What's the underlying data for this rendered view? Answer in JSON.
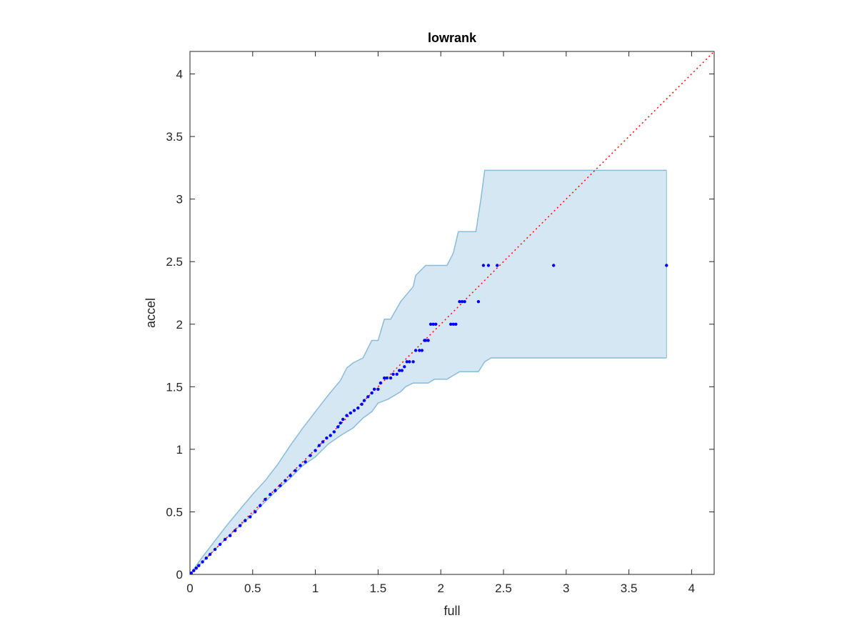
{
  "chart_data": {
    "type": "scatter",
    "title": "lowrank",
    "xlabel": "full",
    "ylabel": "accel",
    "xlim": [
      0,
      4.18
    ],
    "ylim": [
      0,
      4.18
    ],
    "xticks": [
      "0",
      "0.5",
      "1",
      "1.5",
      "2",
      "2.5",
      "3",
      "3.5",
      "4"
    ],
    "yticks": [
      "0",
      "0.5",
      "1",
      "1.5",
      "2",
      "2.5",
      "3",
      "3.5",
      "4"
    ],
    "grid": false,
    "legend": "none",
    "colors": {
      "points": "#0000ff",
      "reference_line": "#ff0000",
      "band_fill": "#d6e7f4",
      "band_edge": "#8abbd9",
      "axes": "#262626"
    },
    "reference_line": {
      "x": [
        0,
        4.18
      ],
      "y": [
        0,
        4.18
      ],
      "style": "dotted"
    },
    "band_upper": {
      "x": [
        0,
        0.1,
        0.2,
        0.3,
        0.4,
        0.5,
        0.6,
        0.7,
        0.8,
        0.9,
        1.0,
        1.1,
        1.2,
        1.25,
        1.3,
        1.38,
        1.45,
        1.5,
        1.55,
        1.6,
        1.68,
        1.78,
        1.8,
        1.88,
        1.9,
        1.95,
        2.0,
        2.05,
        2.1,
        2.14,
        2.18,
        2.22,
        2.28,
        2.32,
        2.35,
        2.6,
        3.0,
        3.8
      ],
      "y": [
        0,
        0.14,
        0.27,
        0.4,
        0.52,
        0.64,
        0.75,
        0.88,
        1.03,
        1.17,
        1.3,
        1.43,
        1.55,
        1.65,
        1.69,
        1.73,
        1.87,
        1.87,
        2.04,
        2.04,
        2.18,
        2.3,
        2.39,
        2.47,
        2.47,
        2.47,
        2.47,
        2.47,
        2.57,
        2.74,
        2.74,
        2.74,
        2.74,
        3.0,
        3.23,
        3.23,
        3.23,
        3.23
      ]
    },
    "band_lower": {
      "x": [
        0,
        0.1,
        0.2,
        0.3,
        0.4,
        0.5,
        0.6,
        0.7,
        0.8,
        0.9,
        1.0,
        1.1,
        1.2,
        1.3,
        1.38,
        1.45,
        1.5,
        1.58,
        1.68,
        1.72,
        1.78,
        1.9,
        1.95,
        2.05,
        2.15,
        2.2,
        2.3,
        2.35,
        2.4,
        2.6,
        3.0,
        3.8
      ],
      "y": [
        0,
        0.1,
        0.2,
        0.3,
        0.39,
        0.48,
        0.58,
        0.68,
        0.77,
        0.87,
        0.94,
        1.04,
        1.11,
        1.17,
        1.25,
        1.3,
        1.37,
        1.4,
        1.46,
        1.5,
        1.53,
        1.53,
        1.56,
        1.56,
        1.62,
        1.62,
        1.62,
        1.7,
        1.73,
        1.73,
        1.73,
        1.73
      ]
    },
    "series": [
      {
        "x": [
          0.01,
          0.03,
          0.05,
          0.07,
          0.1,
          0.13,
          0.16,
          0.2,
          0.24,
          0.28,
          0.32,
          0.36,
          0.4,
          0.44,
          0.48,
          0.52,
          0.56,
          0.6,
          0.64,
          0.68,
          0.72,
          0.76,
          0.8,
          0.84,
          0.88,
          0.92,
          0.96,
          1.0,
          1.03,
          1.06,
          1.09,
          1.12,
          1.15,
          1.18,
          1.2,
          1.22,
          1.25,
          1.28,
          1.31,
          1.34,
          1.37,
          1.39,
          1.42,
          1.45,
          1.47,
          1.5,
          1.52,
          1.55,
          1.57,
          1.6,
          1.62,
          1.65,
          1.67,
          1.69,
          1.71,
          1.73,
          1.75,
          1.78,
          1.8,
          1.83,
          1.85,
          1.87,
          1.88,
          1.9,
          1.92,
          1.94,
          1.96,
          2.08,
          2.1,
          2.12,
          2.15,
          2.17,
          2.19,
          2.3,
          2.34,
          2.38,
          2.45,
          2.9,
          3.8
        ],
        "y": [
          0.01,
          0.03,
          0.05,
          0.07,
          0.1,
          0.13,
          0.16,
          0.2,
          0.24,
          0.28,
          0.31,
          0.35,
          0.39,
          0.43,
          0.46,
          0.5,
          0.55,
          0.6,
          0.64,
          0.67,
          0.71,
          0.75,
          0.79,
          0.83,
          0.87,
          0.9,
          0.95,
          0.99,
          1.03,
          1.06,
          1.09,
          1.11,
          1.14,
          1.18,
          1.21,
          1.24,
          1.27,
          1.29,
          1.31,
          1.33,
          1.36,
          1.39,
          1.42,
          1.45,
          1.48,
          1.48,
          1.53,
          1.57,
          1.57,
          1.57,
          1.6,
          1.6,
          1.63,
          1.63,
          1.66,
          1.7,
          1.7,
          1.7,
          1.79,
          1.79,
          1.79,
          1.87,
          1.87,
          1.87,
          2.0,
          2.0,
          2.0,
          2.0,
          2.0,
          2.0,
          2.18,
          2.18,
          2.18,
          2.18,
          2.47,
          2.47,
          2.47,
          2.47,
          2.47
        ]
      }
    ]
  }
}
